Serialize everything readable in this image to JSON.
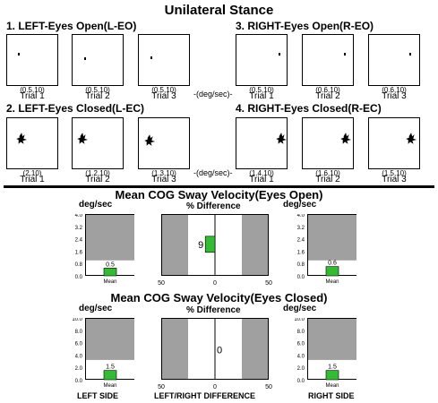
{
  "page_title": "Unilateral Stance",
  "deg_sec_label": "-(deg/sec)-",
  "trials": {
    "left_open": {
      "heading": "1. LEFT-Eyes Open(L-EO)",
      "items": [
        {
          "label": "Trial 1",
          "value": "(0.5,10)"
        },
        {
          "label": "Trial 2",
          "value": "(0.5,10)"
        },
        {
          "label": "Trial 3",
          "value": "(0.5,10)"
        }
      ]
    },
    "right_open": {
      "heading": "3. RIGHT-Eyes Open(R-EO)",
      "items": [
        {
          "label": "Trial 1",
          "value": "(0.5,10)"
        },
        {
          "label": "Trial 2",
          "value": "(0.6,10)"
        },
        {
          "label": "Trial 3",
          "value": "(0.6,10)"
        }
      ]
    },
    "left_closed": {
      "heading": "2. LEFT-Eyes Closed(L-EC)",
      "items": [
        {
          "label": "Trial 1",
          "value": "(2,10)"
        },
        {
          "label": "Trial 2",
          "value": "(1.2,10)"
        },
        {
          "label": "Trial 3",
          "value": "(1.3,10)"
        }
      ]
    },
    "right_closed": {
      "heading": "4. RIGHT-Eyes Closed(R-EC)",
      "items": [
        {
          "label": "Trial 1",
          "value": "(1.4,10)"
        },
        {
          "label": "Trial 2",
          "value": "(1.6,10)"
        },
        {
          "label": "Trial 3",
          "value": "(1.5,10)"
        }
      ]
    }
  },
  "unit_label": "deg/sec",
  "pct_label": "% Difference",
  "bar_category": "Mean",
  "colors": {
    "bar": "#33bb33",
    "shade": "#a0a0a0"
  },
  "chart_data": [
    {
      "type": "bar",
      "title": "Mean COG Sway Velocity(Eyes Open)",
      "left": {
        "value": 0.5,
        "value_label": "0.5",
        "ylim": [
          0,
          4.0
        ],
        "normal_max": 1.0,
        "ticks": [
          "4.0",
          "3.2",
          "2.4",
          "1.6",
          "0.8",
          "0.0"
        ]
      },
      "right": {
        "value": 0.6,
        "value_label": "0.6",
        "ylim": [
          0,
          4.0
        ],
        "normal_max": 1.0,
        "ticks": [
          "4.0",
          "3.2",
          "2.4",
          "1.6",
          "0.8",
          "0.0"
        ]
      },
      "difference": {
        "value": -9,
        "value_label": "9",
        "xlim": [
          -50,
          50
        ],
        "normal_range": [
          -25,
          25
        ],
        "ticks": [
          "50",
          "0",
          "50"
        ]
      }
    },
    {
      "type": "bar",
      "title": "Mean COG Sway Velocity(Eyes Closed)",
      "left": {
        "value": 1.5,
        "value_label": "1.5",
        "ylim": [
          0,
          10.0
        ],
        "normal_max": 3.2,
        "ticks": [
          "10.0",
          "8.0",
          "6.0",
          "4.0",
          "2.0",
          "0.0"
        ]
      },
      "right": {
        "value": 1.5,
        "value_label": "1.5",
        "ylim": [
          0,
          10.0
        ],
        "normal_max": 3.2,
        "ticks": [
          "10.0",
          "8.0",
          "6.0",
          "4.0",
          "2.0",
          "0.0"
        ]
      },
      "difference": {
        "value": 0,
        "value_label": "0",
        "xlim": [
          -50,
          50
        ],
        "normal_range": [
          -25,
          25
        ],
        "ticks": [
          "50",
          "0",
          "50"
        ]
      }
    }
  ],
  "bottom_labels": {
    "left": "LEFT SIDE",
    "middle": "LEFT/RIGHT DIFFERENCE",
    "right": "RIGHT SIDE"
  }
}
